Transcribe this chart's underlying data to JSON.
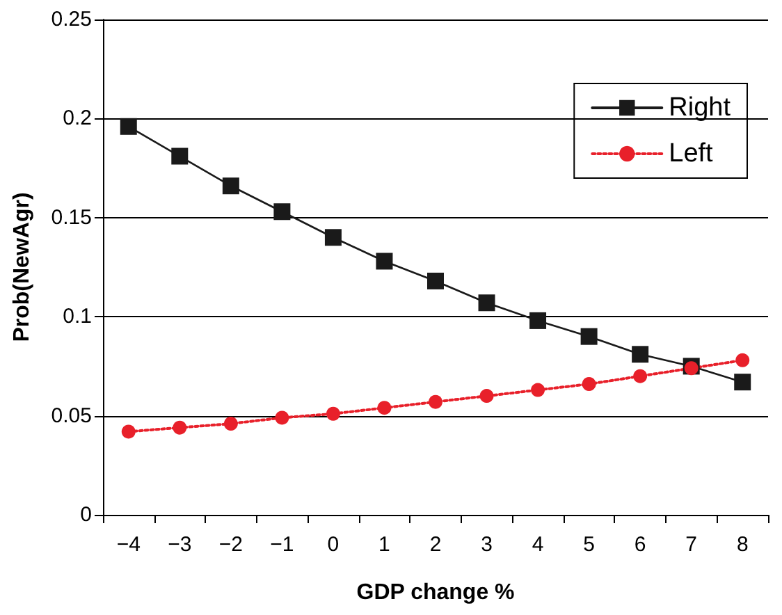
{
  "chart_data": {
    "type": "line",
    "xlabel": "GDP change %",
    "ylabel": "Prob(NewAgr)",
    "categories": [
      "−4",
      "−3",
      "−2",
      "−1",
      "0",
      "1",
      "2",
      "3",
      "4",
      "5",
      "6",
      "7",
      "8"
    ],
    "series": [
      {
        "name": "Right",
        "color": "#1a1a1a",
        "marker": "square",
        "line_style": "solid",
        "values": [
          0.196,
          0.181,
          0.166,
          0.153,
          0.14,
          0.128,
          0.118,
          0.107,
          0.098,
          0.09,
          0.081,
          0.075,
          0.067
        ]
      },
      {
        "name": "Left",
        "color": "#e8202a",
        "marker": "circle",
        "line_style": "dotted",
        "values": [
          0.042,
          0.044,
          0.046,
          0.049,
          0.051,
          0.054,
          0.057,
          0.06,
          0.063,
          0.066,
          0.07,
          0.074,
          0.078
        ]
      }
    ],
    "ylim": [
      0,
      0.25
    ],
    "yticks": [
      0,
      0.05,
      0.1,
      0.15,
      0.2,
      0.25
    ],
    "grid": "y",
    "legend": "top right"
  }
}
